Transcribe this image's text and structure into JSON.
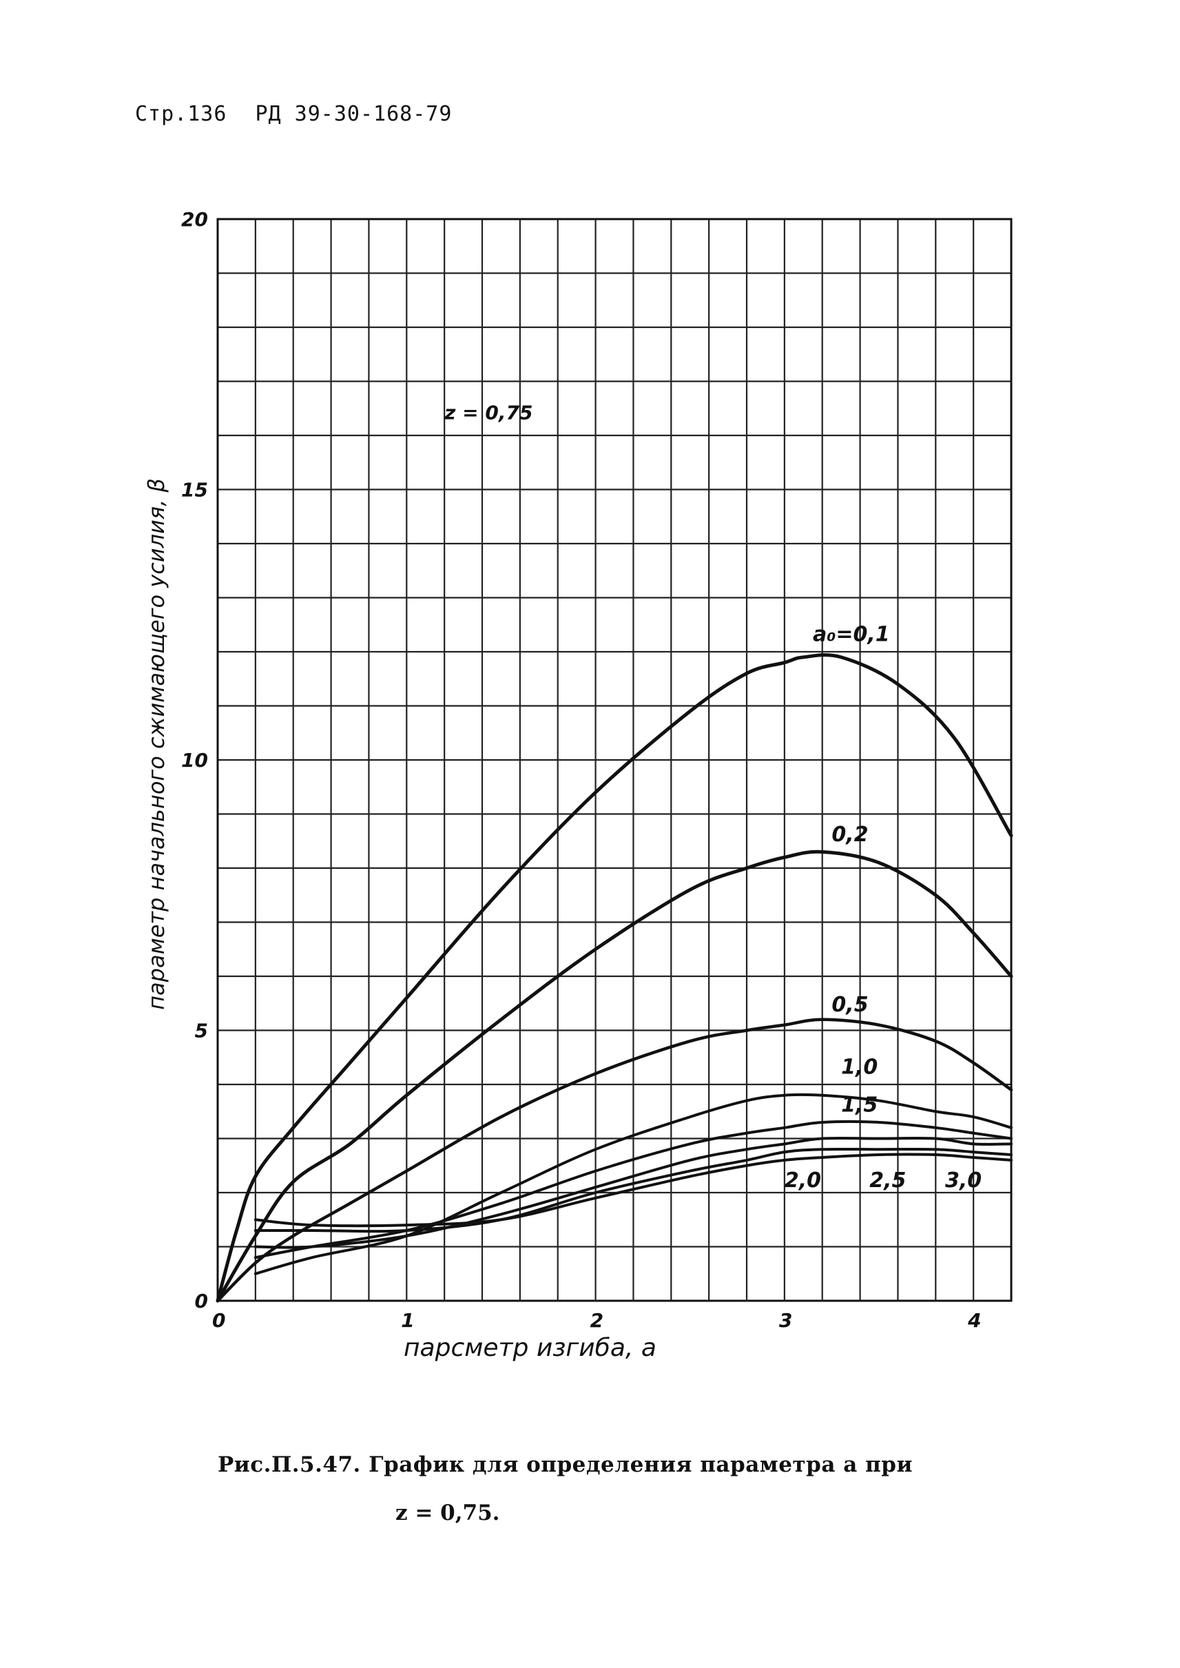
{
  "header": {
    "page_label": "Стр.136",
    "document_code": "РД 39-30-168-79"
  },
  "caption": {
    "line1": "Рис.П.5.47. График для определения параметра  а   при",
    "line2": "z = 0,75."
  },
  "chart_data": {
    "type": "line",
    "xlabel": "парсметр изгиба,   а",
    "ylabel": "параметр начального сжимающего усилия, β",
    "annotation": "z = 0,75",
    "xlim": [
      0,
      4.2
    ],
    "ylim": [
      0,
      20
    ],
    "x_ticks": [
      0,
      1,
      2,
      3,
      4
    ],
    "x_tick_labels": [
      "0",
      "1",
      "2",
      "3",
      "4"
    ],
    "y_ticks": [
      0,
      5,
      10,
      15,
      20
    ],
    "y_tick_labels": [
      "0",
      "5",
      "10",
      "15",
      "20"
    ],
    "grid": true,
    "grid_step_x": 0.2,
    "grid_step_y": 1,
    "line_color": "#111111",
    "series": [
      {
        "name": "a₀=0,1",
        "x": [
          0,
          0.1,
          0.2,
          0.4,
          0.7,
          1.0,
          1.5,
          2.0,
          2.5,
          2.8,
          3.0,
          3.1,
          3.3,
          3.6,
          3.9,
          4.2
        ],
        "y": [
          0,
          1.3,
          2.3,
          3.2,
          4.4,
          5.6,
          7.6,
          9.4,
          10.9,
          11.6,
          11.8,
          11.9,
          11.9,
          11.4,
          10.4,
          8.6
        ]
      },
      {
        "name": "0,2",
        "x": [
          0,
          0.2,
          0.4,
          0.7,
          1.0,
          1.5,
          2.0,
          2.5,
          2.8,
          3.0,
          3.2,
          3.5,
          3.8,
          4.0,
          4.2
        ],
        "y": [
          0,
          1.2,
          2.2,
          2.9,
          3.8,
          5.2,
          6.5,
          7.6,
          8.0,
          8.2,
          8.3,
          8.1,
          7.5,
          6.8,
          6.0
        ]
      },
      {
        "name": "0,5",
        "x": [
          0,
          0.2,
          0.4,
          0.7,
          1.0,
          1.5,
          2.0,
          2.5,
          2.8,
          3.0,
          3.2,
          3.5,
          3.8,
          4.0,
          4.2
        ],
        "y": [
          0,
          0.7,
          1.2,
          1.8,
          2.4,
          3.4,
          4.2,
          4.8,
          5.0,
          5.1,
          5.2,
          5.1,
          4.8,
          4.4,
          3.9
        ]
      },
      {
        "name": "1,0",
        "x": [
          0.2,
          0.5,
          1.0,
          1.5,
          2.0,
          2.5,
          2.8,
          3.0,
          3.2,
          3.5,
          3.8,
          4.0,
          4.2
        ],
        "y": [
          0.5,
          0.8,
          1.2,
          2.0,
          2.8,
          3.4,
          3.7,
          3.8,
          3.8,
          3.7,
          3.5,
          3.4,
          3.2
        ]
      },
      {
        "name": "1,5",
        "x": [
          0.2,
          0.5,
          1.0,
          1.5,
          2.0,
          2.5,
          2.8,
          3.0,
          3.2,
          3.5,
          3.8,
          4.0,
          4.2
        ],
        "y": [
          0.8,
          1.0,
          1.3,
          1.8,
          2.4,
          2.9,
          3.1,
          3.2,
          3.3,
          3.3,
          3.2,
          3.1,
          3.0
        ]
      },
      {
        "name": "2,0",
        "x": [
          0.2,
          0.5,
          1.0,
          1.5,
          2.0,
          2.5,
          2.8,
          3.0,
          3.2,
          3.5,
          3.8,
          4.0,
          4.2
        ],
        "y": [
          1.0,
          1.0,
          1.2,
          1.6,
          2.1,
          2.6,
          2.8,
          2.9,
          3.0,
          3.0,
          3.0,
          2.9,
          2.9
        ]
      },
      {
        "name": "2,5",
        "x": [
          0.2,
          0.5,
          1.0,
          1.5,
          2.0,
          2.5,
          2.8,
          3.0,
          3.2,
          3.5,
          3.8,
          4.0,
          4.2
        ],
        "y": [
          1.3,
          1.3,
          1.3,
          1.5,
          2.0,
          2.4,
          2.6,
          2.75,
          2.8,
          2.8,
          2.8,
          2.75,
          2.7
        ]
      },
      {
        "name": "3,0",
        "x": [
          0.2,
          0.5,
          1.0,
          1.5,
          2.0,
          2.5,
          2.8,
          3.0,
          3.2,
          3.5,
          3.8,
          4.0,
          4.2
        ],
        "y": [
          1.5,
          1.4,
          1.4,
          1.5,
          1.9,
          2.3,
          2.5,
          2.6,
          2.65,
          2.7,
          2.7,
          2.65,
          2.6
        ]
      }
    ],
    "series_labels": [
      "a₀=0,1",
      "0,2",
      "0,5",
      "1,0",
      "1,5",
      "2,0",
      "2,5",
      "3,0"
    ]
  }
}
